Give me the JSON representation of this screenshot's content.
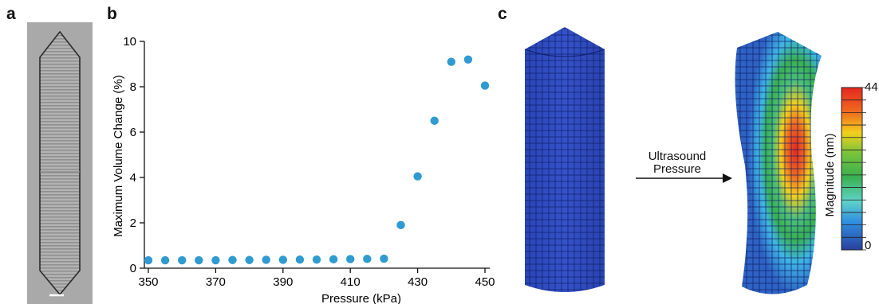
{
  "panels": {
    "a": "a",
    "b": "b",
    "c": "c"
  },
  "chart_data": {
    "type": "scatter",
    "xlabel": "Pressure (kPa)",
    "ylabel": "Maximum Volume Change (%)",
    "xlim": [
      350,
      450
    ],
    "ylim": [
      0,
      10
    ],
    "x_ticks": [
      350,
      370,
      390,
      410,
      430,
      450
    ],
    "y_ticks": [
      0,
      2,
      4,
      6,
      8,
      10
    ],
    "grid": false,
    "marker_color": "#2f9bd0",
    "x": [
      350,
      355,
      360,
      365,
      370,
      375,
      380,
      385,
      390,
      395,
      400,
      405,
      410,
      415,
      420,
      425,
      430,
      435,
      440,
      445,
      450
    ],
    "y": [
      0.35,
      0.35,
      0.35,
      0.35,
      0.35,
      0.36,
      0.36,
      0.37,
      0.37,
      0.38,
      0.38,
      0.39,
      0.4,
      0.41,
      0.42,
      1.9,
      4.05,
      6.5,
      9.1,
      9.2,
      8.05
    ]
  },
  "simulation": {
    "arrow_label_line1": "Ultrasound",
    "arrow_label_line2": "Pressure",
    "colorbar_title": "Magnitude (nm)",
    "colorbar_max": "44",
    "colorbar_min": "0",
    "colormap": [
      "#2a3f9e",
      "#2e62c4",
      "#2f8ee0",
      "#3fb6e6",
      "#5ed3c8",
      "#4cbf7b",
      "#39b04f",
      "#7cc33a",
      "#c9d321",
      "#f2d01c",
      "#f5a21b",
      "#f06a1f",
      "#e5271f"
    ]
  }
}
